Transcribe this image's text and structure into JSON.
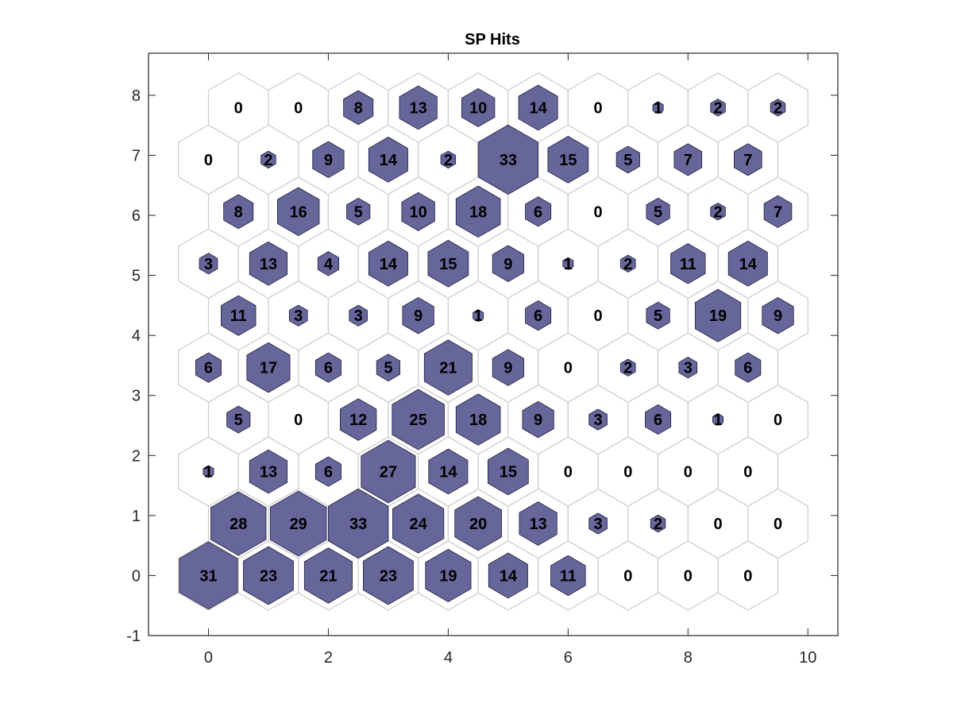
{
  "chart_data": {
    "type": "heatmap",
    "title": "SP Hits",
    "xlabel": "",
    "ylabel": "",
    "xlim": [
      -1,
      10.5
    ],
    "ylim": [
      -1,
      8.7
    ],
    "xticks": [
      0,
      2,
      4,
      6,
      8,
      10
    ],
    "yticks": [
      -1,
      0,
      1,
      2,
      3,
      4,
      5,
      6,
      7,
      8
    ],
    "grid": false,
    "legend": "none",
    "hex_fill_color": "#66669b",
    "hex_edge_color": "#1f1f3d",
    "cell_outline_color": "#cccccc",
    "grid_cols": 10,
    "grid_rows": 10,
    "odd_row_x_offset": 0.5,
    "max_hits": 33,
    "hits": [
      [
        31,
        23,
        21,
        23,
        19,
        14,
        11,
        0,
        0,
        0
      ],
      [
        28,
        29,
        33,
        24,
        20,
        13,
        3,
        2,
        0,
        0
      ],
      [
        1,
        13,
        6,
        27,
        14,
        15,
        0,
        0,
        0,
        0
      ],
      [
        5,
        0,
        12,
        25,
        18,
        9,
        3,
        6,
        1,
        0
      ],
      [
        6,
        17,
        6,
        5,
        21,
        9,
        0,
        2,
        3,
        6
      ],
      [
        11,
        3,
        3,
        9,
        1,
        6,
        0,
        5,
        19,
        9
      ],
      [
        3,
        13,
        4,
        14,
        15,
        9,
        1,
        2,
        11,
        14
      ],
      [
        8,
        16,
        5,
        10,
        18,
        6,
        0,
        5,
        2,
        7
      ],
      [
        0,
        2,
        9,
        14,
        2,
        33,
        15,
        5,
        7,
        7
      ],
      [
        0,
        0,
        8,
        13,
        10,
        14,
        0,
        1,
        2,
        2
      ]
    ]
  }
}
